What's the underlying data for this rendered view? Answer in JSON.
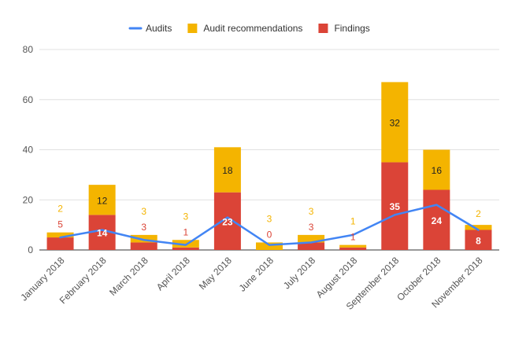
{
  "chart_data": {
    "type": "bar",
    "stacked": true,
    "categories": [
      "January 2018",
      "February 2018",
      "March 2018",
      "April 2018",
      "May 2018",
      "June 2018",
      "July 2018",
      "August 2018",
      "September 2018",
      "October 2018",
      "November 2018"
    ],
    "series": [
      {
        "name": "Findings",
        "kind": "bar",
        "color": "#db4437",
        "values": [
          5,
          14,
          3,
          1,
          23,
          0,
          3,
          1,
          35,
          24,
          8
        ],
        "label_color": "#ffffff"
      },
      {
        "name": "Audit recommendations",
        "kind": "bar",
        "color": "#f4b400",
        "values": [
          2,
          12,
          3,
          3,
          18,
          3,
          3,
          1,
          32,
          16,
          2
        ],
        "label_color": "#222222"
      },
      {
        "name": "Audits",
        "kind": "line",
        "color": "#4285f4",
        "values": [
          5,
          8,
          4,
          2,
          13,
          2,
          3,
          6,
          14,
          18,
          8
        ]
      }
    ],
    "legend": [
      "Audits",
      "Audit recommendations",
      "Findings"
    ],
    "legend_position": "top",
    "ylim": [
      0,
      80
    ],
    "yticks": [
      0,
      20,
      40,
      60,
      80
    ],
    "grid": true,
    "title": "",
    "xlabel": "",
    "ylabel": ""
  }
}
